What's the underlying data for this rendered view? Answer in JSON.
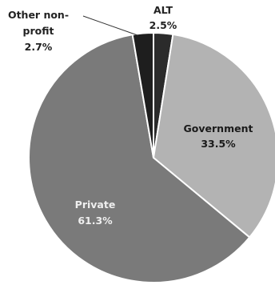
{
  "chart_data": {
    "type": "pie",
    "title": "",
    "slices": [
      {
        "label": "ALT",
        "value": 2.5,
        "display": "2.5%",
        "color": "#2b2b2b",
        "label_color": "#222222"
      },
      {
        "label": "Government",
        "value": 33.5,
        "display": "33.5%",
        "color": "#b3b3b3",
        "label_color": "#1a1a1a"
      },
      {
        "label": "Private",
        "value": 61.3,
        "display": "61.3%",
        "color": "#7a7a7a",
        "label_color": "#efefef"
      },
      {
        "label": "Other non-profit",
        "value": 2.7,
        "display": "2.7%",
        "color": "#1e1e1e",
        "label_color": "#222222"
      }
    ],
    "start_angle": "12 o'clock",
    "direction": "clockwise",
    "legend": "none"
  },
  "labels": {
    "alt": {
      "name": "ALT",
      "value": "2.5%"
    },
    "government": {
      "name": "Government",
      "value": "33.5%"
    },
    "private": {
      "name": "Private",
      "value": "61.3%"
    },
    "other": {
      "line1": "Other non-",
      "line2": "profit",
      "value": "2.7%"
    }
  }
}
